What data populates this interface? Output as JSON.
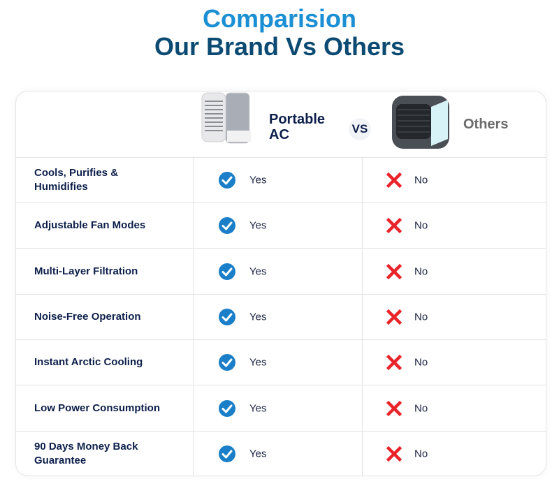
{
  "title": {
    "line1": "Comparision",
    "line2": "Our Brand Vs Others"
  },
  "header": {
    "brand_label": "Portable\nAC",
    "vs_label": "VS",
    "others_label": "Others"
  },
  "colors": {
    "accent": "#1b8fd3",
    "navy": "#0b4a72",
    "check": "#1a7fc8",
    "cross": "#e8242a"
  },
  "rows": [
    {
      "feature": "Cools, Purifies & Humidifies",
      "brand": "Yes",
      "others": "No"
    },
    {
      "feature": "Adjustable Fan Modes",
      "brand": "Yes",
      "others": "No"
    },
    {
      "feature": "Multi-Layer Filtration",
      "brand": "Yes",
      "others": "No"
    },
    {
      "feature": "Noise-Free Operation",
      "brand": "Yes",
      "others": "No"
    },
    {
      "feature": "Instant Arctic Cooling",
      "brand": "Yes",
      "others": "No"
    },
    {
      "feature": "Low Power Consumption",
      "brand": "Yes",
      "others": "No"
    },
    {
      "feature": "90 Days Money Back Guarantee",
      "brand": "Yes",
      "others": "No"
    }
  ]
}
